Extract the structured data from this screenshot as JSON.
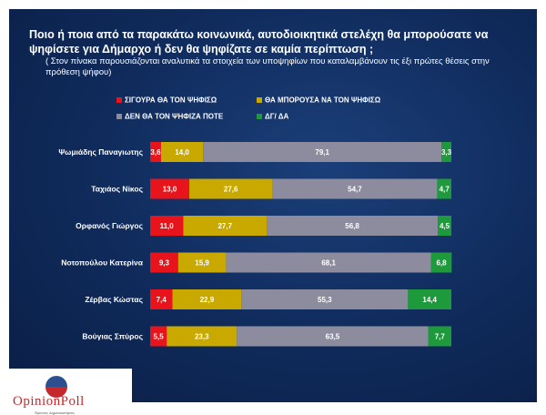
{
  "title": "Ποιο ή ποια από τα παρακάτω κοινωνικά, αυτοδιοικητικά στελέχη θα μπορούσατε να ψηφίσετε για Δήμαρχο ή δεν θα ψηφίζατε σε καμία περίπτωση ;",
  "subtitle": "( Στον πίνακα παρουσιάζονται αναλυτικά τα στοιχεία των υποψηφίων που καταλαμβάνουν τις έξι πρώτες θέσεις στην πρόθεση ψήφου)",
  "logo": {
    "text": "OpinionPoll",
    "tagline": "Έρευνες Δημοσκοπήσεις"
  },
  "colors": {
    "red": "#e8141c",
    "yellow": "#c9a900",
    "gray": "#8c8c9e",
    "green": "#1e9a3c"
  },
  "chart_data": {
    "type": "bar",
    "orientation": "horizontal",
    "stacked": true,
    "legend_position": "top",
    "categories": [
      "Ψωμιάδης Παναγιωτης",
      "Ταχιάος Νίκος",
      "Ορφανός Γιώργος",
      "Νοτοπούλου Κατερίνα",
      "Ζέρβας Κώστας",
      "Βούγιας Σπύρος"
    ],
    "series": [
      {
        "name": "ΣΙΓΟΥΡΑ ΘΑ ΤΟΝ ΨΗΦΙΣΩ",
        "color": "#e8141c",
        "values": [
          3.6,
          13.0,
          11.0,
          9.3,
          7.4,
          5.5
        ],
        "labels": [
          "3,6",
          "13,0",
          "11,0",
          "9,3",
          "7,4",
          "5,5"
        ]
      },
      {
        "name": "ΘΑ ΜΠΟΡΟΥΣΑ ΝΑ ΤΟΝ ΨΗΦΙΣΩ",
        "color": "#c9a900",
        "values": [
          14.0,
          27.6,
          27.7,
          15.9,
          22.9,
          23.3
        ],
        "labels": [
          "14,0",
          "27,6",
          "27,7",
          "15,9",
          "22,9",
          "23,3"
        ]
      },
      {
        "name": "ΔΕΝ ΘΑ ΤΟΝ ΨΗΦΙΖΑ ΠΟΤΕ",
        "color": "#8c8c9e",
        "values": [
          79.1,
          54.7,
          56.8,
          68.1,
          55.3,
          63.5
        ],
        "labels": [
          "79,1",
          "54,7",
          "56,8",
          "68,1",
          "55,3",
          "63,5"
        ]
      },
      {
        "name": "ΔΓ/ ΔΑ",
        "color": "#1e9a3c",
        "values": [
          3.3,
          4.7,
          4.5,
          6.8,
          14.4,
          7.7
        ],
        "labels": [
          "3,3",
          "4,7",
          "4,5",
          "6,8",
          "14,4",
          "7,7"
        ]
      }
    ],
    "xlim": [
      0,
      100
    ],
    "grid": false
  }
}
